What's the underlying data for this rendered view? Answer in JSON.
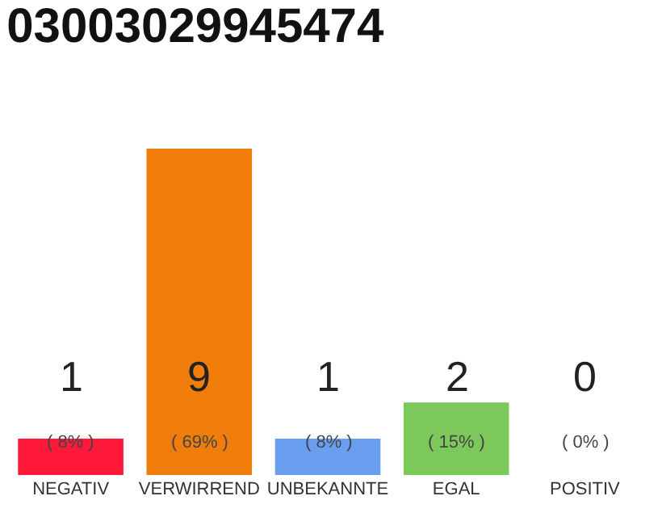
{
  "chart_data": {
    "type": "bar",
    "title": "03003029945474",
    "categories": [
      "NEGATIV",
      "VERWIRREND",
      "UNBEKANNTE",
      "EGAL",
      "POSITIV"
    ],
    "values": [
      1,
      9,
      1,
      2,
      0
    ],
    "colors": [
      "#ff1a3c",
      "#f07d0a",
      "#6a9ff0",
      "#7dc85a",
      "#22aa44"
    ],
    "data_labels": true,
    "annotations": [
      "( 8% )",
      "( 69% )",
      "( 8% )",
      "( 15% )",
      "( 0% )"
    ],
    "legend": false
  }
}
